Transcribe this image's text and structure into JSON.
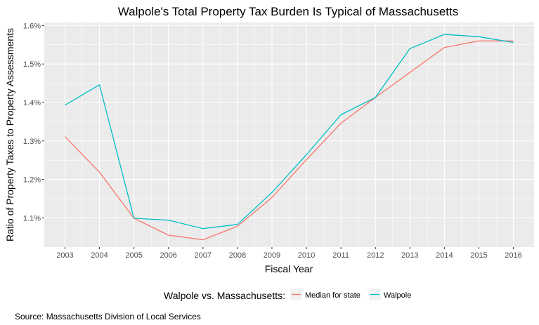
{
  "chart_data": {
    "type": "line",
    "title": "Walpole's Total Property Tax Burden Is Typical of Massachusetts",
    "xlabel": "Fiscal Year",
    "ylabel": "Ratio of Property Taxes to Property Assessments",
    "x": [
      2003,
      2004,
      2005,
      2006,
      2007,
      2008,
      2009,
      2010,
      2011,
      2012,
      2013,
      2014,
      2015,
      2016
    ],
    "xticks": [
      "2003",
      "2004",
      "2005",
      "2006",
      "2007",
      "2008",
      "2009",
      "2010",
      "2011",
      "2012",
      "2013",
      "2014",
      "2015",
      "2016"
    ],
    "xlim": [
      2002.4,
      2016.6
    ],
    "ylim": [
      1.024,
      1.608
    ],
    "yticks": [
      1.1,
      1.2,
      1.3,
      1.4,
      1.5,
      1.6
    ],
    "ytick_labels": [
      "1.1%",
      "1.2%",
      "1.3%",
      "1.4%",
      "1.5%",
      "1.6%"
    ],
    "series": [
      {
        "name": "Median for state",
        "color": "#F8766D",
        "values": [
          1.311,
          1.219,
          1.099,
          1.055,
          1.043,
          1.078,
          1.153,
          1.251,
          1.346,
          1.413,
          1.478,
          1.543,
          1.56,
          1.56
        ]
      },
      {
        "name": "Walpole",
        "color": "#00BFC4",
        "values": [
          1.393,
          1.446,
          1.099,
          1.094,
          1.072,
          1.083,
          1.166,
          1.264,
          1.368,
          1.413,
          1.54,
          1.577,
          1.571,
          1.556
        ]
      }
    ],
    "legend": {
      "title": "Walpole vs. Massachusetts:",
      "position": "bottom"
    },
    "grid": true,
    "panel_background": "#EBEBEB",
    "caption": "Source: Massachusetts Division of Local Services"
  }
}
